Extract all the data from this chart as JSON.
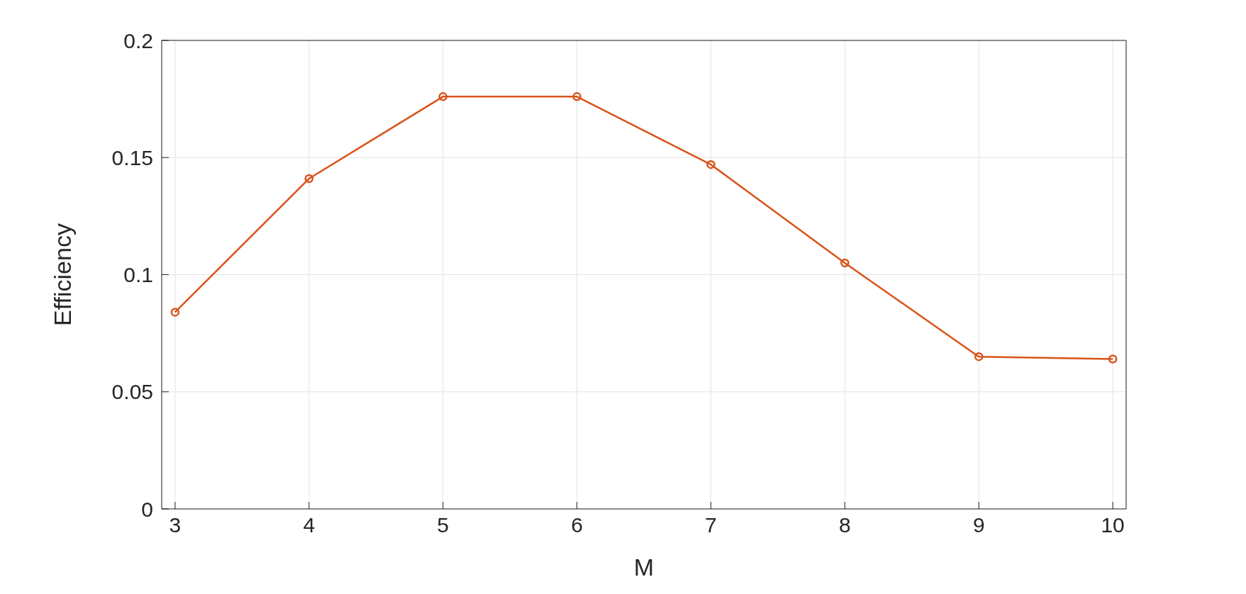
{
  "chart_data": {
    "type": "line",
    "xlabel": "M",
    "ylabel": "Efficiency",
    "x": [
      3,
      4,
      5,
      6,
      7,
      8,
      9,
      10
    ],
    "series": [
      {
        "color": "#d95319",
        "values": [
          0.084,
          0.141,
          0.176,
          0.176,
          0.147,
          0.105,
          0.065,
          0.064
        ]
      }
    ],
    "xlim": [
      2.9,
      10.1
    ],
    "xticks": [
      3,
      4,
      5,
      6,
      7,
      8,
      9,
      10
    ],
    "ylim": [
      0,
      0.2
    ],
    "yticks": [
      0,
      0.05,
      0.1,
      0.15,
      0.2
    ],
    "grid": true,
    "marker": "circle",
    "line_style": "solid"
  }
}
